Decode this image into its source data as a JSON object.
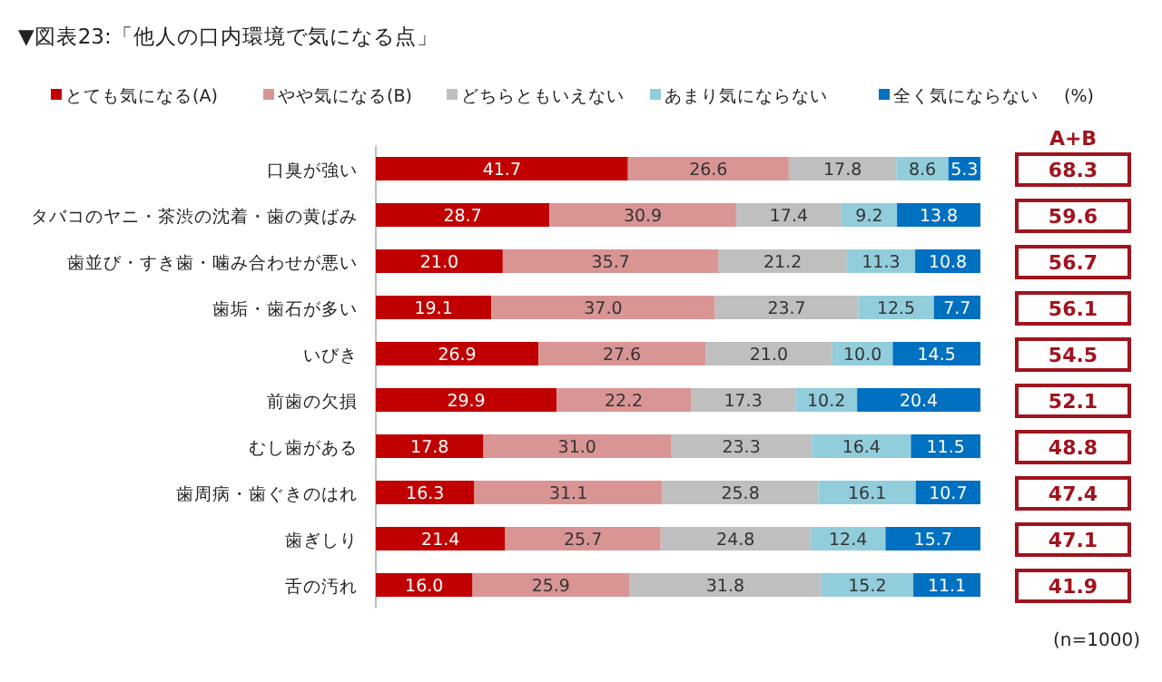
{
  "chart_data": {
    "type": "bar",
    "orientation": "horizontal",
    "stacked": true,
    "title": "▼図表23:「他人の口内環境で気になる点」",
    "categories": [
      "口臭が強い",
      "タバコのヤニ・茶渋の沈着・歯の黄ばみ",
      "歯並び・すき歯・噛み合わせが悪い",
      "歯垢・歯石が多い",
      "いびき",
      "前歯の欠損",
      "むし歯がある",
      "歯周病・歯ぐきのはれ",
      "歯ぎしり",
      "舌の汚れ"
    ],
    "series": [
      {
        "name": "とても気になる(A)",
        "color": "#c00000",
        "values": [
          41.7,
          28.7,
          21.0,
          19.1,
          26.9,
          29.9,
          17.8,
          16.3,
          21.4,
          16.0
        ],
        "value_labels": [
          "41.7",
          "28.7",
          "21.0",
          "19.1",
          "26.9",
          "29.9",
          "17.8",
          "16.3",
          "21.4",
          "16.0"
        ]
      },
      {
        "name": "やや気になる(B)",
        "color": "#d99594",
        "values": [
          26.6,
          30.9,
          35.7,
          37.0,
          27.6,
          22.2,
          31.0,
          31.1,
          25.7,
          25.9
        ],
        "value_labels": [
          "26.6",
          "30.9",
          "35.7",
          "37.0",
          "27.6",
          "22.2",
          "31.0",
          "31.1",
          "25.7",
          "25.9"
        ]
      },
      {
        "name": "どちらともいえない",
        "color": "#bfbfbf",
        "values": [
          17.8,
          17.4,
          21.2,
          23.7,
          21.0,
          17.3,
          23.3,
          25.8,
          24.8,
          31.8
        ],
        "value_labels": [
          "17.8",
          "17.4",
          "21.2",
          "23.7",
          "21.0",
          "17.3",
          "23.3",
          "25.8",
          "24.8",
          "31.8"
        ]
      },
      {
        "name": "あまり気にならない",
        "color": "#92cddc",
        "values": [
          8.6,
          9.2,
          11.3,
          12.5,
          10.0,
          10.2,
          16.4,
          16.1,
          12.4,
          15.2
        ],
        "value_labels": [
          "8.6",
          "9.2",
          "11.3",
          "12.5",
          "10.0",
          "10.2",
          "16.4",
          "16.1",
          "12.4",
          "15.2"
        ]
      },
      {
        "name": "全く気にならない",
        "color": "#0070c0",
        "values": [
          5.3,
          13.8,
          10.8,
          7.7,
          14.5,
          20.4,
          11.5,
          10.7,
          15.7,
          11.1
        ],
        "value_labels": [
          "5.3",
          "13.8",
          "10.8",
          "7.7",
          "14.5",
          "20.4",
          "11.5",
          "10.7",
          "15.7",
          "11.1"
        ]
      }
    ],
    "xlim": [
      0,
      100
    ],
    "tick_labels": "y",
    "legend": "top",
    "annotations": [
      "(%)",
      "A+B",
      "68.3",
      "59.6",
      "56.7",
      "56.1",
      "54.5",
      "52.1",
      "48.8",
      "47.4",
      "47.1",
      "41.9",
      "(n=1000)"
    ]
  }
}
